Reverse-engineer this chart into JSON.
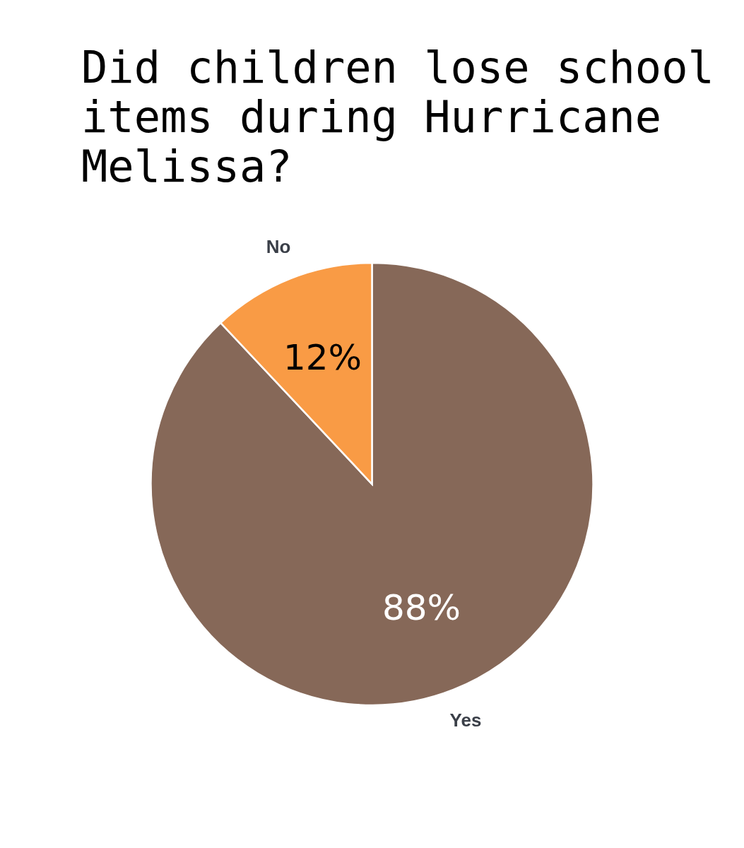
{
  "chart_data": {
    "type": "pie",
    "title": "Did children lose school items during Hurricane Melissa?",
    "categories": [
      "Yes",
      "No"
    ],
    "values": [
      88,
      12
    ],
    "value_labels": [
      "88%",
      "12%"
    ],
    "colors": [
      "#866858",
      "#f99b45"
    ]
  }
}
